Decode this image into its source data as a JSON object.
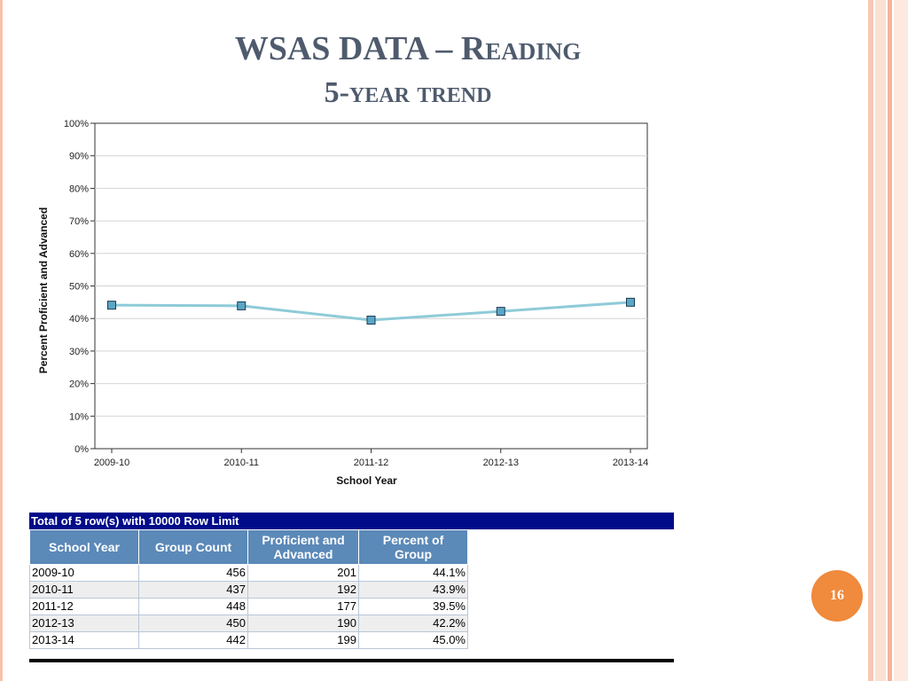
{
  "slide": {
    "title_line1_prefix": "WSAS DATA – ",
    "title_line1_sc": "Reading",
    "title_line2": "5-year trend",
    "page_number": "16"
  },
  "chart_data": {
    "type": "line",
    "x": [
      "2009-10",
      "2010-11",
      "2011-12",
      "2012-13",
      "2013-14"
    ],
    "series": [
      {
        "values": [
          44.1,
          43.9,
          39.5,
          42.2,
          45.0
        ],
        "color": "#8ecbd8",
        "marker_color": "#5aa6c6"
      }
    ],
    "xlabel": "School Year",
    "ylabel": "Percent Proficient and Advanced",
    "ylim": [
      0,
      100
    ],
    "yticks": [
      "0%",
      "10%",
      "20%",
      "30%",
      "40%",
      "50%",
      "60%",
      "70%",
      "80%",
      "90%",
      "100%"
    ],
    "grid": true,
    "legend": "none"
  },
  "table": {
    "header_text": "Total of 5 row(s) with 10000 Row Limit",
    "columns": [
      "School Year",
      "Group Count",
      "Proficient and Advanced",
      "Percent of Group"
    ],
    "rows": [
      [
        "2009-10",
        "456",
        "201",
        "44.1%"
      ],
      [
        "2010-11",
        "437",
        "192",
        "43.9%"
      ],
      [
        "2011-12",
        "448",
        "177",
        "39.5%"
      ],
      [
        "2012-13",
        "450",
        "190",
        "42.2%"
      ],
      [
        "2013-14",
        "442",
        "199",
        "45.0%"
      ]
    ]
  }
}
